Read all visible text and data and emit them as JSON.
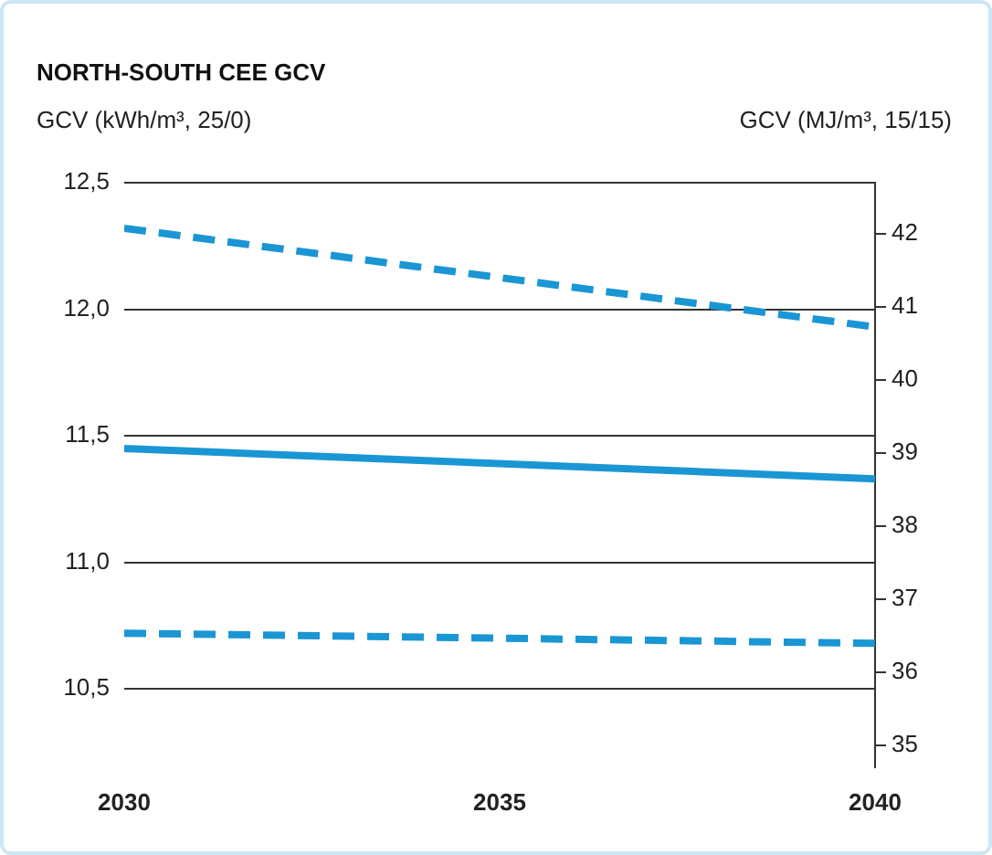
{
  "chart_data": {
    "type": "line",
    "title": "NORTH-SOUTH CEE GCV",
    "ylabel": "GCV (kWh/m³, 25/0)",
    "y2label": "GCV (MJ/m³, 15/15)",
    "x": [
      2030,
      2040
    ],
    "xlim": [
      2030,
      2040
    ],
    "xticks": [
      2030,
      2035,
      2040
    ],
    "ylim": [
      10.19,
      12.5
    ],
    "yticks": [
      {
        "value": 10.5,
        "label": "10,5"
      },
      {
        "value": 11,
        "label": "11,0"
      },
      {
        "value": 11.5,
        "label": "11,5"
      },
      {
        "value": 12,
        "label": "12,0"
      },
      {
        "value": 12.5,
        "label": "12,5"
      }
    ],
    "y2lim": [
      34.7,
      42.7
    ],
    "y2ticks": [
      35,
      36,
      37,
      38,
      39,
      40,
      41,
      42
    ],
    "grid": "y",
    "marker": "none",
    "series": [
      {
        "color": "#1a96d4",
        "line_style": "dashed",
        "values": [
          12.32,
          11.93
        ]
      },
      {
        "color": "#1a96d4",
        "line_style": "solid",
        "values": [
          11.45,
          11.33
        ]
      },
      {
        "color": "#1a96d4",
        "line_style": "dashed",
        "values": [
          10.72,
          10.68
        ]
      }
    ]
  }
}
